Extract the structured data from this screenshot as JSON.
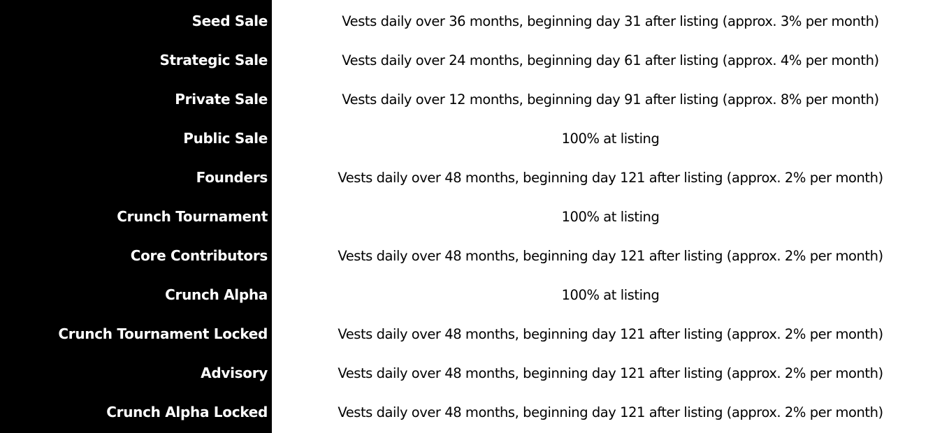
{
  "rows": [
    {
      "label": "Seed Sale",
      "value": "Vests daily over 36 months, beginning day 31 after listing (approx. 3% per month)"
    },
    {
      "label": "Strategic Sale",
      "value": "Vests daily over 24 months, beginning day 61 after listing (approx. 4% per month)"
    },
    {
      "label": "Private Sale",
      "value": "Vests daily over 12 months, beginning day 91 after listing (approx. 8% per month)"
    },
    {
      "label": "Public Sale",
      "value": "100% at listing"
    },
    {
      "label": "Founders",
      "value": "Vests daily over 48 months, beginning day 121 after listing (approx. 2% per month)"
    },
    {
      "label": "Crunch Tournament",
      "value": "100% at listing"
    },
    {
      "label": "Core Contributors",
      "value": "Vests daily over 48 months, beginning day 121 after listing (approx. 2% per month)"
    },
    {
      "label": "Crunch Alpha",
      "value": "100% at listing"
    },
    {
      "label": "Crunch Tournament Locked",
      "value": "Vests daily over 48 months, beginning day 121 after listing (approx. 2% per month)"
    },
    {
      "label": "Advisory",
      "value": "Vests daily over 48 months, beginning day 121 after listing (approx. 2% per month)"
    },
    {
      "label": "Crunch Alpha Locked",
      "value": "Vests daily over 48 months, beginning day 121 after listing (approx. 2% per month)"
    }
  ]
}
